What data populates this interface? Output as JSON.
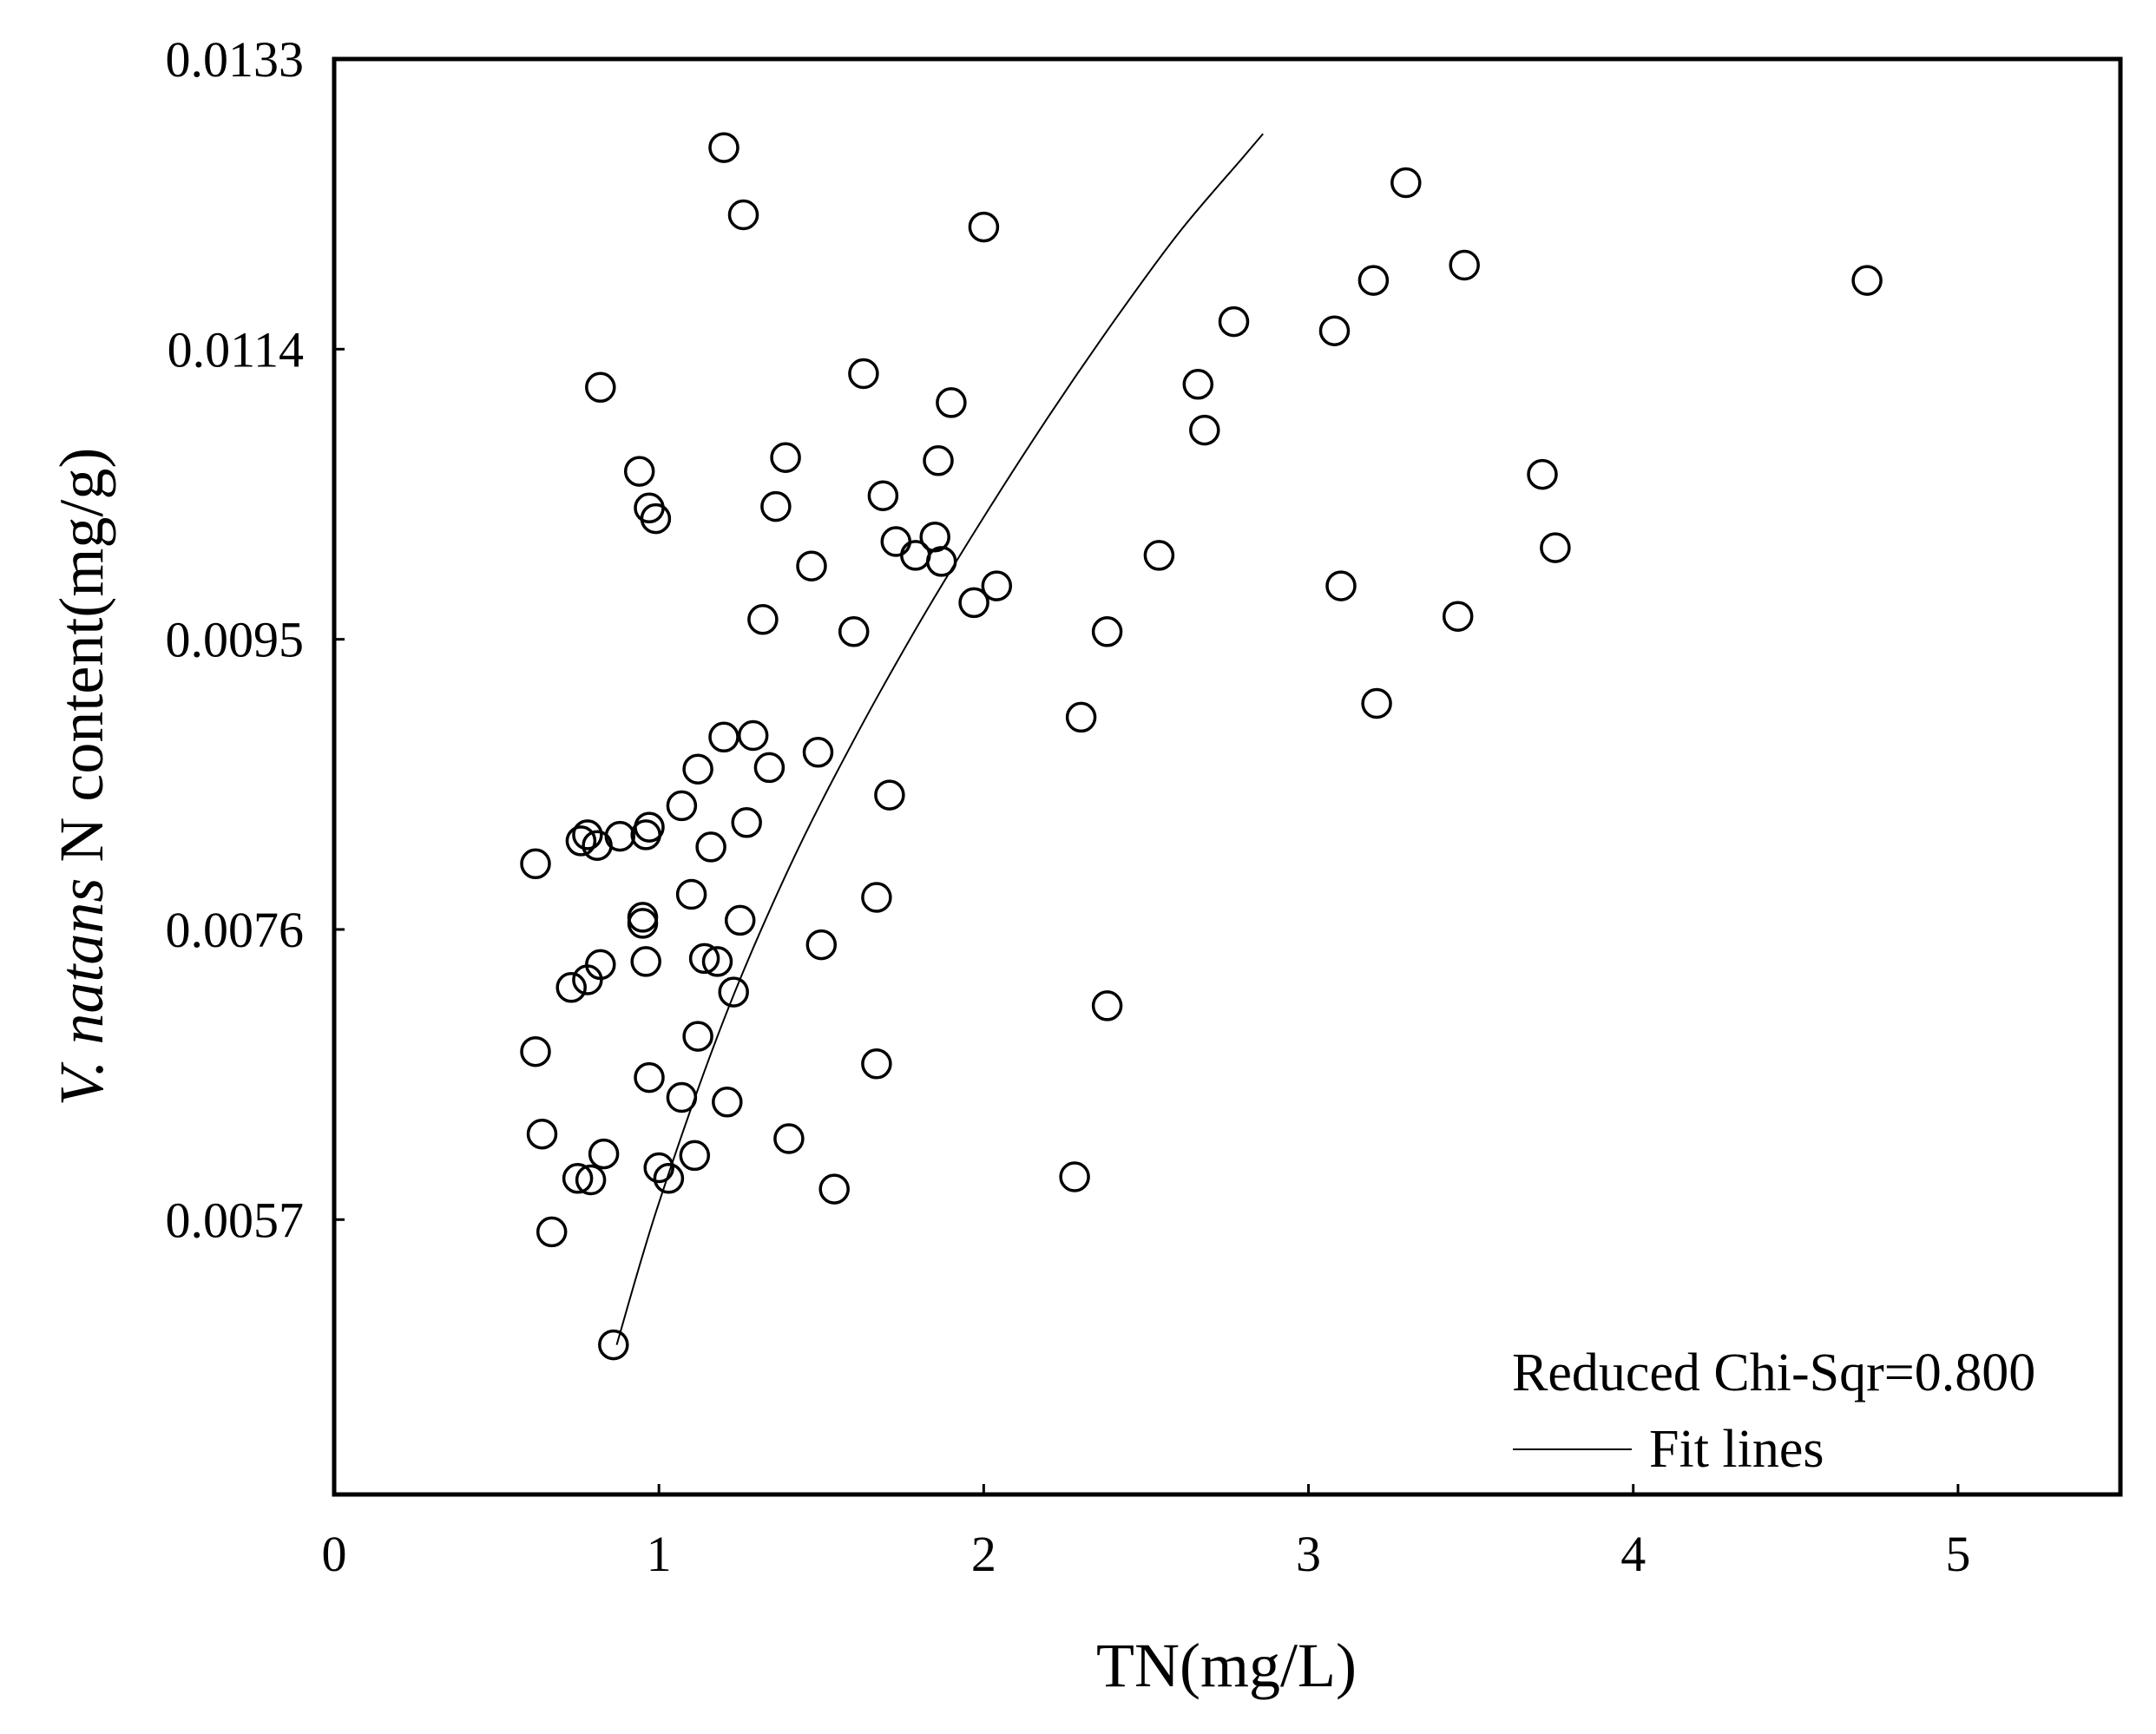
{
  "chart_data": {
    "type": "scatter",
    "title": "",
    "xlabel": "TN(mg/L)",
    "ylabel_italic": "V. natans",
    "ylabel_rest": " N content(mg/g)",
    "xlim": [
      0,
      5.5
    ],
    "ylim": [
      0.0039,
      0.0133
    ],
    "x_ticks": [
      0,
      1,
      2,
      3,
      4,
      5
    ],
    "x_tick_labels": [
      "0",
      "1",
      "2",
      "3",
      "4",
      "5"
    ],
    "y_ticks": [
      0.0057,
      0.0076,
      0.0095,
      0.0114,
      0.0133
    ],
    "y_tick_labels": [
      "0.0057",
      "0.0076",
      "0.0095",
      "0.0114",
      "0.0133"
    ],
    "grid": false,
    "annotation": "Reduced Chi-Sqr=0.800",
    "legend": {
      "label": "Fit lines",
      "placement": "bottom-right"
    },
    "series": [
      {
        "type": "scatter",
        "marker": "open-circle",
        "points": [
          [
            1.2,
            0.01272
          ],
          [
            1.26,
            0.01228
          ],
          [
            2.0,
            0.0122
          ],
          [
            3.3,
            0.01249
          ],
          [
            0.82,
            0.01115
          ],
          [
            1.63,
            0.01124
          ],
          [
            1.9,
            0.01105
          ],
          [
            2.66,
            0.01117
          ],
          [
            2.77,
            0.01158
          ],
          [
            3.08,
            0.01152
          ],
          [
            3.2,
            0.01185
          ],
          [
            3.48,
            0.01195
          ],
          [
            4.72,
            0.01185
          ],
          [
            0.94,
            0.0106
          ],
          [
            0.97,
            0.01036
          ],
          [
            0.99,
            0.01029
          ],
          [
            1.39,
            0.01069
          ],
          [
            1.36,
            0.01037
          ],
          [
            1.69,
            0.01044
          ],
          [
            1.86,
            0.01067
          ],
          [
            2.68,
            0.01087
          ],
          [
            3.72,
            0.01058
          ],
          [
            1.73,
            0.01014
          ],
          [
            1.79,
            0.01005
          ],
          [
            1.85,
            0.01017
          ],
          [
            1.87,
            0.01001
          ],
          [
            1.47,
            0.00998
          ],
          [
            2.54,
            0.01005
          ],
          [
            3.76,
            0.0101
          ],
          [
            1.97,
            0.00974
          ],
          [
            2.04,
            0.00985
          ],
          [
            3.1,
            0.00985
          ],
          [
            1.32,
            0.00963
          ],
          [
            1.6,
            0.00955
          ],
          [
            2.38,
            0.00955
          ],
          [
            3.46,
            0.00965
          ],
          [
            2.3,
            0.00899
          ],
          [
            3.21,
            0.00908
          ],
          [
            1.2,
            0.00886
          ],
          [
            1.29,
            0.00887
          ],
          [
            1.49,
            0.00876
          ],
          [
            1.12,
            0.00865
          ],
          [
            1.34,
            0.00866
          ],
          [
            1.71,
            0.00848
          ],
          [
            1.07,
            0.00841
          ],
          [
            0.97,
            0.00827
          ],
          [
            0.96,
            0.00822
          ],
          [
            0.76,
            0.00818
          ],
          [
            0.78,
            0.00822
          ],
          [
            0.88,
            0.00821
          ],
          [
            0.81,
            0.00815
          ],
          [
            1.27,
            0.0083
          ],
          [
            1.16,
            0.00814
          ],
          [
            0.62,
            0.00803
          ],
          [
            1.1,
            0.00783
          ],
          [
            1.67,
            0.00781
          ],
          [
            0.95,
            0.00768
          ],
          [
            0.95,
            0.00764
          ],
          [
            1.25,
            0.00766
          ],
          [
            1.5,
            0.0075
          ],
          [
            0.96,
            0.00739
          ],
          [
            1.14,
            0.00741
          ],
          [
            1.18,
            0.00739
          ],
          [
            0.82,
            0.00737
          ],
          [
            0.78,
            0.00727
          ],
          [
            0.73,
            0.00722
          ],
          [
            1.23,
            0.00719
          ],
          [
            2.38,
            0.0071
          ],
          [
            1.12,
            0.0069
          ],
          [
            0.62,
            0.0068
          ],
          [
            1.67,
            0.00672
          ],
          [
            0.97,
            0.00663
          ],
          [
            1.07,
            0.0065
          ],
          [
            1.21,
            0.00647
          ],
          [
            0.64,
            0.00626
          ],
          [
            1.4,
            0.00623
          ],
          [
            0.83,
            0.00613
          ],
          [
            1.11,
            0.00612
          ],
          [
            1.0,
            0.00604
          ],
          [
            0.75,
            0.00597
          ],
          [
            0.79,
            0.00596
          ],
          [
            1.03,
            0.00597
          ],
          [
            2.28,
            0.00598
          ],
          [
            1.54,
            0.0059
          ],
          [
            0.67,
            0.00562
          ],
          [
            0.86,
            0.00488
          ]
        ]
      },
      {
        "name": "Fit lines",
        "type": "line",
        "points": [
          [
            0.87,
            0.00488
          ],
          [
            1.0,
            0.00581
          ],
          [
            1.2,
            0.00701
          ],
          [
            1.4,
            0.008
          ],
          [
            1.6,
            0.00884
          ],
          [
            1.8,
            0.0096
          ],
          [
            2.0,
            0.0103
          ],
          [
            2.2,
            0.01096
          ],
          [
            2.4,
            0.01158
          ],
          [
            2.6,
            0.01216
          ],
          [
            2.8,
            0.01266
          ],
          [
            2.86,
            0.01281
          ]
        ]
      }
    ]
  }
}
